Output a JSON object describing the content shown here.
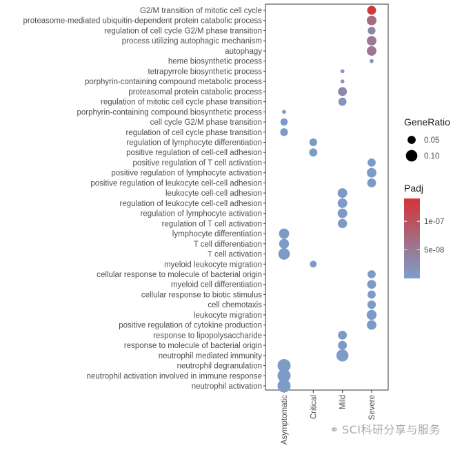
{
  "chart_data": {
    "type": "scatter",
    "x_categories": [
      "Asymptomatic",
      "Critical",
      "Mild",
      "Severe"
    ],
    "y_terms": [
      "G2/M transition of mitotic cell cycle",
      "proteasome-mediated ubiquitin-dependent protein catabolic process",
      "regulation of cell cycle G2/M phase transition",
      "process utilizing autophagic mechanism",
      "autophagy",
      "heme biosynthetic process",
      "tetrapyrrole biosynthetic process",
      "porphyrin-containing compound metabolic process",
      "proteasomal protein catabolic process",
      "regulation of mitotic cell cycle phase transition",
      "porphyrin-containing compound biosynthetic process",
      "cell cycle G2/M phase transition",
      "regulation of cell cycle phase transition",
      "regulation of lymphocyte differentiation",
      "positive regulation of cell-cell adhesion",
      "positive regulation of T cell activation",
      "positive regulation of lymphocyte activation",
      "positive regulation of leukocyte cell-cell adhesion",
      "leukocyte cell-cell adhesion",
      "regulation of leukocyte cell-cell adhesion",
      "regulation of lymphocyte activation",
      "regulation of T cell activation",
      "lymphocyte differentiation",
      "T cell differentiation",
      "T cell activation",
      "myeloid leukocyte migration",
      "cellular response to molecule of bacterial origin",
      "myeloid cell differentiation",
      "cellular response to biotic stimulus",
      "cell chemotaxis",
      "leukocyte migration",
      "positive regulation of cytokine production",
      "response to lipopolysaccharide",
      "response to molecule of bacterial origin",
      "neutrophil mediated immunity",
      "neutrophil degranulation",
      "neutrophil activation involved in immune response",
      "neutrophil activation"
    ],
    "points": [
      {
        "term": "G2/M transition of mitotic cell cycle",
        "group": "Severe",
        "gene_ratio": 0.06,
        "padj": 1.35e-07
      },
      {
        "term": "proteasome-mediated ubiquitin-dependent protein catabolic process",
        "group": "Severe",
        "gene_ratio": 0.07,
        "padj": 6.5e-08
      },
      {
        "term": "regulation of cell cycle G2/M phase transition",
        "group": "Severe",
        "gene_ratio": 0.045,
        "padj": 3.5e-08
      },
      {
        "term": "process utilizing autophagic mechanism",
        "group": "Severe",
        "gene_ratio": 0.07,
        "padj": 5e-08
      },
      {
        "term": "autophagy",
        "group": "Severe",
        "gene_ratio": 0.07,
        "padj": 5.5e-08
      },
      {
        "term": "heme biosynthetic process",
        "group": "Severe",
        "gene_ratio": 0.012,
        "padj": 2e-08
      },
      {
        "term": "tetrapyrrole biosynthetic process",
        "group": "Mild",
        "gene_ratio": 0.012,
        "padj": 1e-08
      },
      {
        "term": "porphyrin-containing compound metabolic process",
        "group": "Mild",
        "gene_ratio": 0.012,
        "padj": 1e-08
      },
      {
        "term": "proteasomal protein catabolic process",
        "group": "Mild",
        "gene_ratio": 0.06,
        "padj": 3e-08
      },
      {
        "term": "regulation of mitotic cell cycle phase transition",
        "group": "Mild",
        "gene_ratio": 0.05,
        "padj": 1.5e-08
      },
      {
        "term": "porphyrin-containing compound biosynthetic process",
        "group": "Asymptomatic",
        "gene_ratio": 0.012,
        "padj": 5e-09
      },
      {
        "term": "cell cycle G2/M phase transition",
        "group": "Asymptomatic",
        "gene_ratio": 0.04,
        "padj": 5e-09
      },
      {
        "term": "regulation of cell cycle phase transition",
        "group": "Asymptomatic",
        "gene_ratio": 0.045,
        "padj": 5e-09
      },
      {
        "term": "regulation of lymphocyte differentiation",
        "group": "Critical",
        "gene_ratio": 0.045,
        "padj": 5e-09
      },
      {
        "term": "positive regulation of cell-cell adhesion",
        "group": "Critical",
        "gene_ratio": 0.05,
        "padj": 5e-09
      },
      {
        "term": "positive regulation of T cell activation",
        "group": "Severe",
        "gene_ratio": 0.05,
        "padj": 5e-09
      },
      {
        "term": "positive regulation of lymphocyte activation",
        "group": "Severe",
        "gene_ratio": 0.07,
        "padj": 5e-09
      },
      {
        "term": "positive regulation of leukocyte cell-cell adhesion",
        "group": "Severe",
        "gene_ratio": 0.06,
        "padj": 5e-09
      },
      {
        "term": "leukocyte cell-cell adhesion",
        "group": "Mild",
        "gene_ratio": 0.07,
        "padj": 5e-09
      },
      {
        "term": "regulation of leukocyte cell-cell adhesion",
        "group": "Mild",
        "gene_ratio": 0.07,
        "padj": 5e-09
      },
      {
        "term": "regulation of lymphocyte activation",
        "group": "Mild",
        "gene_ratio": 0.07,
        "padj": 5e-09
      },
      {
        "term": "regulation of T cell activation",
        "group": "Mild",
        "gene_ratio": 0.065,
        "padj": 5e-09
      },
      {
        "term": "lymphocyte differentiation",
        "group": "Asymptomatic",
        "gene_ratio": 0.08,
        "padj": 5e-09
      },
      {
        "term": "T cell differentiation",
        "group": "Asymptomatic",
        "gene_ratio": 0.075,
        "padj": 5e-09
      },
      {
        "term": "T cell activation",
        "group": "Asymptomatic",
        "gene_ratio": 0.1,
        "padj": 5e-09
      },
      {
        "term": "myeloid leukocyte migration",
        "group": "Critical",
        "gene_ratio": 0.035,
        "padj": 5e-09
      },
      {
        "term": "cellular response to molecule of bacterial origin",
        "group": "Severe",
        "gene_ratio": 0.05,
        "padj": 5e-09
      },
      {
        "term": "myeloid cell differentiation",
        "group": "Severe",
        "gene_ratio": 0.06,
        "padj": 5e-09
      },
      {
        "term": "cellular response to biotic stimulus",
        "group": "Severe",
        "gene_ratio": 0.05,
        "padj": 5e-09
      },
      {
        "term": "cell chemotaxis",
        "group": "Severe",
        "gene_ratio": 0.055,
        "padj": 5e-09
      },
      {
        "term": "leukocyte migration",
        "group": "Severe",
        "gene_ratio": 0.075,
        "padj": 5e-09
      },
      {
        "term": "positive regulation of cytokine production",
        "group": "Severe",
        "gene_ratio": 0.07,
        "padj": 5e-09
      },
      {
        "term": "response to lipopolysaccharide",
        "group": "Mild",
        "gene_ratio": 0.06,
        "padj": 5e-09
      },
      {
        "term": "response to molecule of bacterial origin",
        "group": "Mild",
        "gene_ratio": 0.06,
        "padj": 5e-09
      },
      {
        "term": "neutrophil mediated immunity",
        "group": "Mild",
        "gene_ratio": 0.11,
        "padj": 5e-09
      },
      {
        "term": "neutrophil degranulation",
        "group": "Asymptomatic",
        "gene_ratio": 0.13,
        "padj": 5e-09
      },
      {
        "term": "neutrophil activation involved in immune response",
        "group": "Asymptomatic",
        "gene_ratio": 0.13,
        "padj": 5e-09
      },
      {
        "term": "neutrophil activation",
        "group": "Asymptomatic",
        "gene_ratio": 0.13,
        "padj": 5e-09
      }
    ],
    "size_legend": {
      "title": "GeneRatio",
      "breaks": [
        0.05,
        0.1
      ],
      "labels": [
        "0.05",
        "0.10"
      ]
    },
    "color_legend": {
      "title": "Padj",
      "min": 0,
      "max": 1.4e-07,
      "breaks": [
        5e-08,
        1e-07
      ],
      "labels": [
        "5e-08",
        "1e-07"
      ],
      "low_color": "#7a9fcc",
      "high_color": "#d33434"
    },
    "size_range_gene_ratio": [
      0.0,
      0.13
    ]
  },
  "watermark": {
    "text": "SCI科研分享与服务",
    "icon": "wechat-icon"
  }
}
